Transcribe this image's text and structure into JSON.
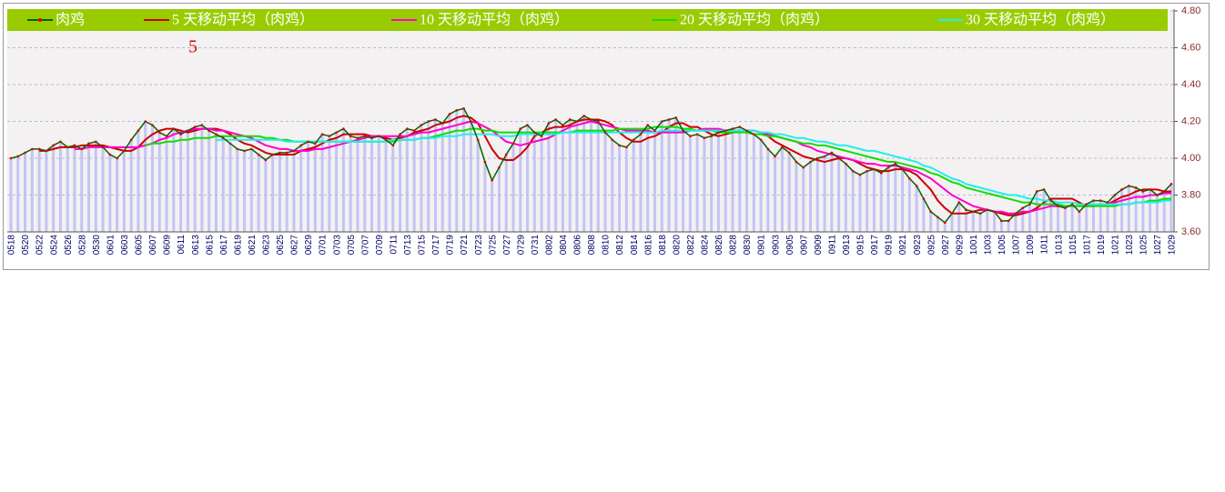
{
  "chart_data": {
    "type": "line",
    "annotation": "5",
    "categories": [
      "0518",
      null,
      "0520",
      null,
      "0522",
      null,
      "0524",
      null,
      "0526",
      null,
      "0528",
      null,
      "0530",
      null,
      "0601",
      null,
      "0603",
      null,
      "0605",
      null,
      "0607",
      null,
      "0609",
      null,
      "0611",
      null,
      "0613",
      null,
      "0615",
      null,
      "0617",
      null,
      "0619",
      null,
      "0621",
      null,
      "0623",
      null,
      "0625",
      null,
      "0627",
      null,
      "0629",
      null,
      "0701",
      null,
      "0703",
      null,
      "0705",
      null,
      "0707",
      null,
      "0709",
      null,
      "0711",
      null,
      "0713",
      null,
      "0715",
      null,
      "0717",
      null,
      "0719",
      null,
      "0721",
      null,
      "0723",
      null,
      "0725",
      null,
      "0727",
      null,
      "0729",
      null,
      "0731",
      null,
      "0802",
      null,
      "0804",
      null,
      "0806",
      null,
      "0808",
      null,
      "0810",
      null,
      "0812",
      null,
      "0814",
      null,
      "0816",
      null,
      "0818",
      null,
      "0820",
      null,
      "0822",
      null,
      "0824",
      null,
      "0826",
      null,
      "0828",
      null,
      "0830",
      null,
      "0901",
      null,
      "0903",
      null,
      "0905",
      null,
      "0907",
      null,
      "0909",
      null,
      "0911",
      null,
      "0913",
      null,
      "0915",
      null,
      "0917",
      null,
      "0919",
      null,
      "0921",
      null,
      "0923",
      null,
      "0925",
      null,
      "0927",
      null,
      "0929",
      null,
      "1001",
      null,
      "1003",
      null,
      "1005",
      null,
      "1007",
      null,
      "1009",
      null,
      "1011",
      null,
      "1013",
      null,
      "1015",
      null,
      "1017",
      null,
      "1019",
      null,
      "1021",
      null,
      "1023",
      null,
      "1025",
      null,
      "1027",
      null,
      "1029"
    ],
    "series": [
      {
        "name": "肉鸡",
        "color": "#006400",
        "marker_color": "#dd0000",
        "values": [
          4.0,
          4.01,
          4.03,
          4.05,
          4.05,
          4.04,
          4.07,
          4.09,
          4.06,
          4.07,
          4.05,
          4.08,
          4.09,
          4.06,
          4.02,
          4.0,
          4.04,
          4.1,
          4.15,
          4.2,
          4.18,
          4.14,
          4.12,
          4.16,
          4.13,
          4.15,
          4.17,
          4.18,
          4.15,
          4.13,
          4.11,
          4.08,
          4.05,
          4.04,
          4.05,
          4.02,
          3.99,
          4.02,
          4.03,
          4.03,
          4.04,
          4.07,
          4.09,
          4.08,
          4.13,
          4.12,
          4.14,
          4.16,
          4.12,
          4.11,
          4.12,
          4.11,
          4.12,
          4.1,
          4.07,
          4.13,
          4.16,
          4.15,
          4.18,
          4.2,
          4.21,
          4.19,
          4.24,
          4.26,
          4.27,
          4.2,
          4.1,
          3.98,
          3.88,
          3.95,
          4.02,
          4.08,
          4.16,
          4.18,
          4.14,
          4.12,
          4.19,
          4.21,
          4.18,
          4.21,
          4.2,
          4.23,
          4.21,
          4.2,
          4.14,
          4.1,
          4.07,
          4.06,
          4.1,
          4.13,
          4.18,
          4.15,
          4.2,
          4.21,
          4.22,
          4.15,
          4.12,
          4.13,
          4.11,
          4.12,
          4.14,
          4.15,
          4.16,
          4.17,
          4.15,
          4.13,
          4.1,
          4.05,
          4.01,
          4.06,
          4.03,
          3.98,
          3.95,
          3.98,
          4.0,
          4.01,
          4.03,
          4.0,
          3.97,
          3.93,
          3.91,
          3.93,
          3.94,
          3.92,
          3.95,
          3.97,
          3.94,
          3.89,
          3.85,
          3.78,
          3.71,
          3.68,
          3.65,
          3.7,
          3.76,
          3.72,
          3.71,
          3.7,
          3.72,
          3.71,
          3.66,
          3.66,
          3.7,
          3.73,
          3.75,
          3.82,
          3.83,
          3.77,
          3.74,
          3.73,
          3.75,
          3.71,
          3.75,
          3.77,
          3.77,
          3.76,
          3.8,
          3.83,
          3.85,
          3.84,
          3.82,
          3.83,
          3.8,
          3.82,
          3.86
        ]
      },
      {
        "name": "5 天移动平均（肉鸡）",
        "color": "#cc0000",
        "values": [
          null,
          null,
          null,
          null,
          4.04,
          4.04,
          4.05,
          4.06,
          4.06,
          4.06,
          4.07,
          4.07,
          4.07,
          4.07,
          4.06,
          4.05,
          4.04,
          4.04,
          4.06,
          4.1,
          4.13,
          4.15,
          4.16,
          4.16,
          4.15,
          4.14,
          4.15,
          4.16,
          4.16,
          4.16,
          4.15,
          4.13,
          4.1,
          4.08,
          4.07,
          4.05,
          4.03,
          4.02,
          4.02,
          4.02,
          4.02,
          4.04,
          4.05,
          4.06,
          4.08,
          4.1,
          4.11,
          4.13,
          4.13,
          4.13,
          4.13,
          4.12,
          4.12,
          4.11,
          4.1,
          4.11,
          4.12,
          4.14,
          4.15,
          4.16,
          4.18,
          4.19,
          4.2,
          4.22,
          4.23,
          4.22,
          4.19,
          4.12,
          4.05,
          4.0,
          3.99,
          3.99,
          4.02,
          4.06,
          4.12,
          4.14,
          4.16,
          4.17,
          4.17,
          4.18,
          4.2,
          4.21,
          4.21,
          4.21,
          4.2,
          4.18,
          4.14,
          4.11,
          4.09,
          4.09,
          4.11,
          4.12,
          4.14,
          4.17,
          4.19,
          4.19,
          4.17,
          4.17,
          4.15,
          4.13,
          4.12,
          4.13,
          4.14,
          4.15,
          4.15,
          4.15,
          4.14,
          4.12,
          4.09,
          4.07,
          4.05,
          4.03,
          4.01,
          4.0,
          3.99,
          3.98,
          3.99,
          4.0,
          4.0,
          3.99,
          3.97,
          3.95,
          3.94,
          3.93,
          3.93,
          3.94,
          3.94,
          3.93,
          3.91,
          3.87,
          3.83,
          3.77,
          3.73,
          3.7,
          3.7,
          3.7,
          3.71,
          3.72,
          3.72,
          3.71,
          3.7,
          3.69,
          3.69,
          3.7,
          3.71,
          3.73,
          3.76,
          3.78,
          3.78,
          3.78,
          3.78,
          3.76,
          3.74,
          3.74,
          3.75,
          3.75,
          3.77,
          3.79,
          3.8,
          3.82,
          3.83,
          3.83,
          3.83,
          3.82,
          3.82
        ]
      },
      {
        "name": "10 天移动平均（肉鸡）",
        "color": "#ff00cc",
        "values": [
          null,
          null,
          null,
          null,
          null,
          null,
          null,
          null,
          null,
          4.05,
          4.05,
          4.06,
          4.06,
          4.06,
          4.06,
          4.06,
          4.06,
          4.06,
          4.06,
          4.07,
          4.08,
          4.1,
          4.11,
          4.13,
          4.14,
          4.15,
          4.16,
          4.16,
          4.16,
          4.15,
          4.15,
          4.14,
          4.13,
          4.12,
          4.11,
          4.09,
          4.07,
          4.06,
          4.05,
          4.05,
          4.04,
          4.04,
          4.04,
          4.05,
          4.05,
          4.06,
          4.07,
          4.08,
          4.09,
          4.1,
          4.11,
          4.12,
          4.12,
          4.12,
          4.12,
          4.12,
          4.12,
          4.13,
          4.14,
          4.14,
          4.15,
          4.16,
          4.17,
          4.18,
          4.19,
          4.2,
          4.19,
          4.17,
          4.15,
          4.12,
          4.09,
          4.08,
          4.07,
          4.08,
          4.09,
          4.1,
          4.11,
          4.13,
          4.15,
          4.17,
          4.18,
          4.19,
          4.2,
          4.19,
          4.18,
          4.17,
          4.16,
          4.15,
          4.15,
          4.15,
          4.15,
          4.14,
          4.14,
          4.14,
          4.14,
          4.14,
          4.15,
          4.15,
          4.16,
          4.16,
          4.16,
          4.15,
          4.15,
          4.15,
          4.15,
          4.15,
          4.14,
          4.13,
          4.12,
          4.11,
          4.1,
          4.09,
          4.07,
          4.06,
          4.04,
          4.03,
          4.02,
          4.01,
          4.0,
          3.99,
          3.98,
          3.97,
          3.97,
          3.96,
          3.96,
          3.96,
          3.95,
          3.94,
          3.93,
          3.91,
          3.89,
          3.86,
          3.83,
          3.8,
          3.78,
          3.76,
          3.74,
          3.73,
          3.72,
          3.71,
          3.71,
          3.7,
          3.7,
          3.71,
          3.71,
          3.72,
          3.73,
          3.74,
          3.74,
          3.74,
          3.74,
          3.74,
          3.74,
          3.74,
          3.75,
          3.75,
          3.76,
          3.77,
          3.78,
          3.79,
          3.79,
          3.8,
          3.8,
          3.81,
          3.81
        ]
      },
      {
        "name": "20 天移动平均（肉鸡）",
        "color": "#11dd00",
        "values": [
          null,
          null,
          null,
          null,
          null,
          null,
          null,
          null,
          null,
          null,
          null,
          null,
          null,
          null,
          null,
          null,
          null,
          null,
          null,
          4.07,
          4.08,
          4.08,
          4.09,
          4.09,
          4.1,
          4.1,
          4.11,
          4.11,
          4.11,
          4.12,
          4.12,
          4.12,
          4.12,
          4.12,
          4.12,
          4.12,
          4.11,
          4.11,
          4.1,
          4.1,
          4.09,
          4.09,
          4.09,
          4.09,
          4.09,
          4.09,
          4.09,
          4.09,
          4.09,
          4.09,
          4.09,
          4.09,
          4.09,
          4.09,
          4.09,
          4.1,
          4.1,
          4.1,
          4.11,
          4.11,
          4.12,
          4.13,
          4.14,
          4.15,
          4.15,
          4.16,
          4.16,
          4.15,
          4.15,
          4.14,
          4.14,
          4.14,
          4.14,
          4.14,
          4.14,
          4.14,
          4.14,
          4.14,
          4.14,
          4.14,
          4.15,
          4.15,
          4.15,
          4.15,
          4.15,
          4.15,
          4.16,
          4.16,
          4.16,
          4.16,
          4.16,
          4.17,
          4.17,
          4.17,
          4.17,
          4.16,
          4.16,
          4.15,
          4.15,
          4.15,
          4.14,
          4.14,
          4.14,
          4.14,
          4.14,
          4.13,
          4.13,
          4.12,
          4.12,
          4.11,
          4.1,
          4.09,
          4.08,
          4.08,
          4.07,
          4.07,
          4.06,
          4.05,
          4.04,
          4.03,
          4.02,
          4.01,
          4.0,
          3.99,
          3.98,
          3.98,
          3.97,
          3.96,
          3.95,
          3.94,
          3.92,
          3.91,
          3.89,
          3.87,
          3.86,
          3.84,
          3.83,
          3.82,
          3.81,
          3.8,
          3.79,
          3.78,
          3.77,
          3.76,
          3.76,
          3.75,
          3.75,
          3.75,
          3.75,
          3.74,
          3.74,
          3.74,
          3.74,
          3.74,
          3.74,
          3.74,
          3.74,
          3.75,
          3.75,
          3.76,
          3.76,
          3.77,
          3.77,
          3.78,
          3.78
        ]
      },
      {
        "name": "30 天移动平均（肉鸡）",
        "color": "#22eeee",
        "values": [
          null,
          null,
          null,
          null,
          null,
          null,
          null,
          null,
          null,
          null,
          null,
          null,
          null,
          null,
          null,
          null,
          null,
          null,
          null,
          null,
          null,
          null,
          null,
          null,
          null,
          null,
          null,
          null,
          null,
          4.1,
          4.1,
          4.1,
          4.1,
          4.1,
          4.1,
          4.1,
          4.1,
          4.1,
          4.1,
          4.09,
          4.09,
          4.09,
          4.09,
          4.09,
          4.09,
          4.09,
          4.09,
          4.09,
          4.09,
          4.09,
          4.09,
          4.09,
          4.09,
          4.09,
          4.1,
          4.1,
          4.1,
          4.1,
          4.11,
          4.11,
          4.11,
          4.12,
          4.12,
          4.12,
          4.13,
          4.13,
          4.13,
          4.13,
          4.13,
          4.12,
          4.12,
          4.12,
          4.13,
          4.13,
          4.13,
          4.13,
          4.13,
          4.13,
          4.14,
          4.14,
          4.14,
          4.14,
          4.14,
          4.14,
          4.14,
          4.14,
          4.14,
          4.14,
          4.14,
          4.14,
          4.14,
          4.14,
          4.15,
          4.15,
          4.15,
          4.15,
          4.15,
          4.15,
          4.15,
          4.15,
          4.15,
          4.15,
          4.15,
          4.15,
          4.15,
          4.15,
          4.14,
          4.14,
          4.13,
          4.13,
          4.12,
          4.11,
          4.11,
          4.1,
          4.09,
          4.09,
          4.08,
          4.07,
          4.07,
          4.06,
          4.05,
          4.04,
          4.04,
          4.03,
          4.02,
          4.01,
          4.0,
          3.99,
          3.98,
          3.96,
          3.95,
          3.93,
          3.91,
          3.89,
          3.88,
          3.86,
          3.85,
          3.84,
          3.83,
          3.82,
          3.81,
          3.8,
          3.8,
          3.79,
          3.78,
          3.78,
          3.77,
          3.77,
          3.76,
          3.76,
          3.76,
          3.75,
          3.75,
          3.75,
          3.75,
          3.75,
          3.75,
          3.75,
          3.75,
          3.76,
          3.76,
          3.76,
          3.76,
          3.77,
          3.77
        ]
      }
    ],
    "bar_color": "#c4c4f4",
    "legend_background": "#99cc00",
    "ylim": [
      3.6,
      4.8
    ],
    "yticks": [
      {
        "value": 3.6,
        "label": "3.60"
      },
      {
        "value": 3.8,
        "label": "3.80"
      },
      {
        "value": 4.0,
        "label": "4.00"
      },
      {
        "value": 4.2,
        "label": "4.20"
      },
      {
        "value": 4.4,
        "label": "4.40"
      },
      {
        "value": 4.6,
        "label": "4.60"
      },
      {
        "value": 4.8,
        "label": "4.80"
      }
    ],
    "y_axis_side": "right",
    "grid": true
  }
}
